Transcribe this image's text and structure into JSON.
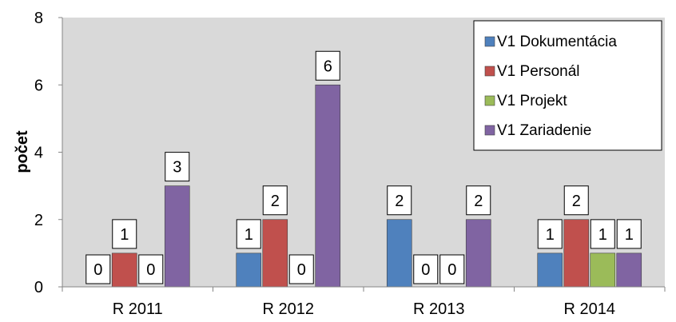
{
  "chart_data": {
    "type": "bar",
    "title": "",
    "xlabel": "",
    "ylabel": "počet",
    "ylim": [
      0,
      8
    ],
    "yticks": [
      0,
      2,
      4,
      6,
      8
    ],
    "grid": false,
    "legend_position": "top-right",
    "categories": [
      "R 2011",
      "R 2012",
      "R 2013",
      "R 2014"
    ],
    "series": [
      {
        "name": "V1 Dokumentácia",
        "color": "#4F81BD",
        "values": [
          0,
          1,
          2,
          1
        ]
      },
      {
        "name": "V1 Personál",
        "color": "#C0504D",
        "values": [
          1,
          2,
          0,
          2
        ]
      },
      {
        "name": "V1 Projekt",
        "color": "#9BBB59",
        "values": [
          0,
          0,
          0,
          1
        ]
      },
      {
        "name": "V1 Zariadenie",
        "color": "#8064A2",
        "values": [
          3,
          6,
          2,
          1
        ]
      }
    ],
    "plot_background": "#D9D9D9"
  }
}
